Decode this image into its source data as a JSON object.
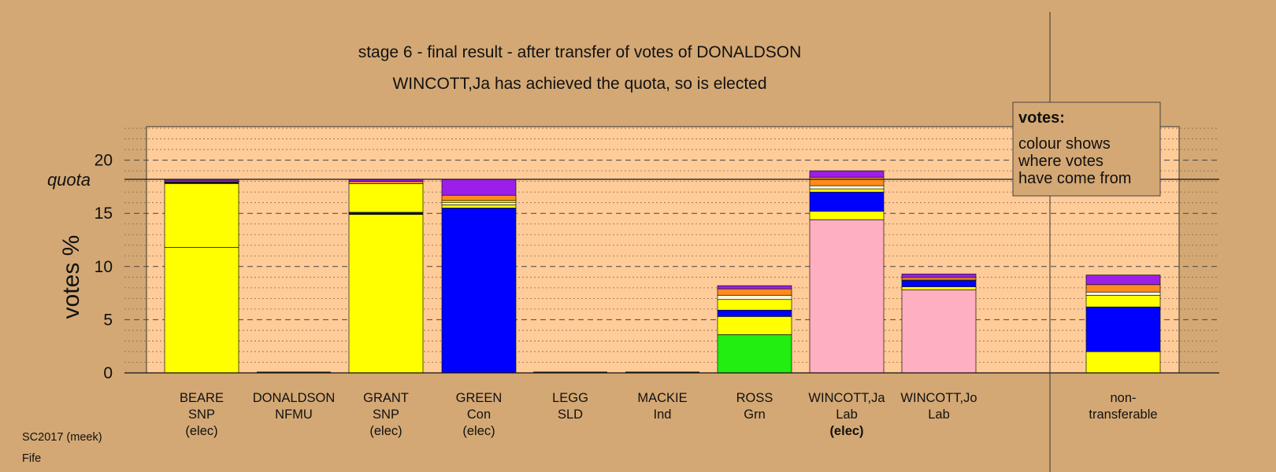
{
  "chart_data": {
    "type": "bar",
    "stacked": true,
    "title": "stage 6 - final result - after transfer of votes of DONALDSON",
    "subtitle": "WINCOTT,Ja has achieved the quota, so is elected",
    "ylabel": "votes %",
    "ylim": [
      0,
      23.5
    ],
    "yticks": [
      "0",
      "5",
      "10",
      "15",
      "20"
    ],
    "quota": 18.2,
    "quota_label": "quota",
    "grid": true,
    "legend": {
      "title": "votes:",
      "lines": [
        "colour shows",
        "where votes",
        "have come from"
      ],
      "position": "top-right"
    },
    "categories": [
      {
        "name": "BEARE",
        "party": "SNP",
        "status": "(elec)",
        "bold_status": false,
        "segments": [
          {
            "color": "#ffff00",
            "value": 11.8
          },
          {
            "color": "#ffff00",
            "value": 6.0
          },
          {
            "color": "#111111",
            "value": 0.15
          },
          {
            "color": "#ff8c1a",
            "value": 0.1
          },
          {
            "color": "#9b1fe8",
            "value": 0.15
          }
        ]
      },
      {
        "name": "DONALDSON",
        "party": "NFMU",
        "status": "",
        "bold_status": false,
        "segments": []
      },
      {
        "name": "GRANT",
        "party": "SNP",
        "status": "(elec)",
        "bold_status": false,
        "segments": [
          {
            "color": "#ffff00",
            "value": 14.9
          },
          {
            "color": "#111111",
            "value": 0.2
          },
          {
            "color": "#ffff00",
            "value": 2.7
          },
          {
            "color": "#ff8c1a",
            "value": 0.2
          },
          {
            "color": "#9b1fe8",
            "value": 0.2
          }
        ]
      },
      {
        "name": "GREEN",
        "party": "Con",
        "status": "(elec)",
        "bold_status": false,
        "segments": [
          {
            "color": "#0000ff",
            "value": 15.5
          },
          {
            "color": "#ffff00",
            "value": 0.3
          },
          {
            "color": "#fff8d8",
            "value": 0.2
          },
          {
            "color": "#ffff00",
            "value": 0.2
          },
          {
            "color": "#ff8c1a",
            "value": 0.5
          },
          {
            "color": "#9b1fe8",
            "value": 1.5
          }
        ]
      },
      {
        "name": "LEGG",
        "party": "SLD",
        "status": "",
        "bold_status": false,
        "segments": []
      },
      {
        "name": "MACKIE",
        "party": "Ind",
        "status": "",
        "bold_status": false,
        "segments": []
      },
      {
        "name": "ROSS",
        "party": "Grn",
        "status": "",
        "bold_status": false,
        "segments": [
          {
            "color": "#22ee11",
            "value": 3.6
          },
          {
            "color": "#ffff00",
            "value": 1.7
          },
          {
            "color": "#0000ff",
            "value": 0.6
          },
          {
            "color": "#ffff00",
            "value": 1.0
          },
          {
            "color": "#fff8d8",
            "value": 0.4
          },
          {
            "color": "#ff8c1a",
            "value": 0.6
          },
          {
            "color": "#9b1fe8",
            "value": 0.3
          }
        ]
      },
      {
        "name": "WINCOTT,Ja",
        "party": "Lab",
        "status": "(elec)",
        "bold_status": true,
        "segments": [
          {
            "color": "#ffb0c0",
            "value": 14.4
          },
          {
            "color": "#ffff00",
            "value": 0.8
          },
          {
            "color": "#0000ff",
            "value": 1.8
          },
          {
            "color": "#ffff00",
            "value": 0.3
          },
          {
            "color": "#fff8d8",
            "value": 0.3
          },
          {
            "color": "#ff8c1a",
            "value": 0.8
          },
          {
            "color": "#9b1fe8",
            "value": 0.6
          }
        ]
      },
      {
        "name": "WINCOTT,Jo",
        "party": "Lab",
        "status": "",
        "bold_status": false,
        "segments": [
          {
            "color": "#ffb0c0",
            "value": 7.8
          },
          {
            "color": "#ffff00",
            "value": 0.3
          },
          {
            "color": "#0000ff",
            "value": 0.6
          },
          {
            "color": "#ffff00",
            "value": 0.1
          },
          {
            "color": "#ff8c1a",
            "value": 0.2
          },
          {
            "color": "#9b1fe8",
            "value": 0.3
          }
        ]
      },
      {
        "name": "non-",
        "party": "transferable",
        "status": "",
        "bold_status": false,
        "segments": [
          {
            "color": "#ffff00",
            "value": 2.0
          },
          {
            "color": "#0000ff",
            "value": 4.2
          },
          {
            "color": "#ffff00",
            "value": 1.1
          },
          {
            "color": "#fff8d8",
            "value": 0.3
          },
          {
            "color": "#ff8c1a",
            "value": 0.7
          },
          {
            "color": "#9b1fe8",
            "value": 0.9
          }
        ]
      }
    ]
  },
  "footer": {
    "line1": "SC2017 (meek)",
    "line2": "Fife"
  },
  "colors": {
    "background": "#d4a874",
    "plot_area": "#ffcc99"
  }
}
